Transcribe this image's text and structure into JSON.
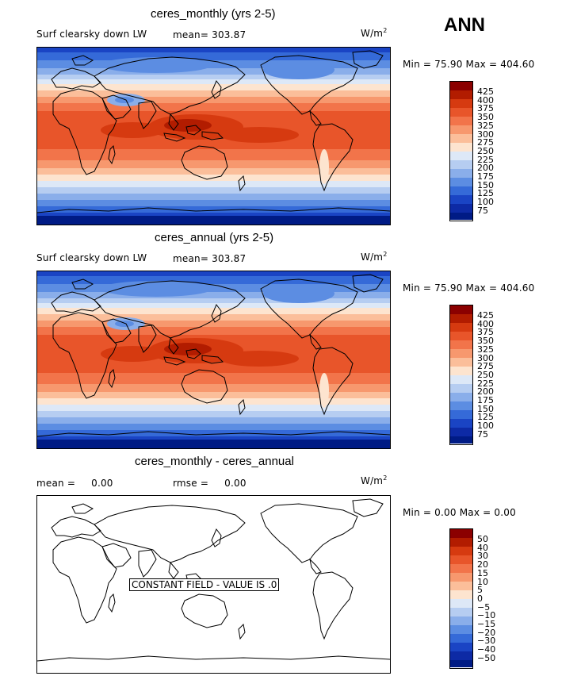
{
  "season": "ANN",
  "units_base": "W/m",
  "units_exp": "2",
  "variable": "Surf clearsky down LW",
  "panels": [
    {
      "title": "ceres_monthly (yrs 2-5)",
      "mean_label": "mean=",
      "mean_value": "303.87",
      "minmax": "Min =   75.90 Max = 404.60"
    },
    {
      "title": "ceres_annual (yrs 2-5)",
      "mean_label": "mean=",
      "mean_value": "303.87",
      "minmax": "Min =   75.90 Max = 404.60"
    },
    {
      "title": "ceres_monthly - ceres_annual",
      "mean_label": "mean =",
      "mean_value": "0.00",
      "rmse_label": "rmse =",
      "rmse_value": "0.00",
      "minmax": "Min =   0.00 Max =   0.00",
      "message": "CONSTANT FIELD - VALUE IS .0"
    }
  ],
  "colorbar_levels": [
    "425",
    "400",
    "375",
    "350",
    "325",
    "300",
    "275",
    "250",
    "225",
    "200",
    "175",
    "150",
    "125",
    "100",
    "75"
  ],
  "diff_colorbar_levels": [
    "50",
    "40",
    "30",
    "20",
    "15",
    "10",
    "5",
    "0",
    "−5",
    "−10",
    "−15",
    "−20",
    "−30",
    "−40",
    "−50"
  ],
  "colors": [
    "#8b0000",
    "#b21c00",
    "#d63a10",
    "#e8552a",
    "#f2744a",
    "#f7986e",
    "#fbbe9a",
    "#fde4cf",
    "#dde8f7",
    "#b6cdf1",
    "#8aaeea",
    "#5c8de2",
    "#356ad8",
    "#1a44c4",
    "#0d2aa5",
    "#001b85"
  ]
}
